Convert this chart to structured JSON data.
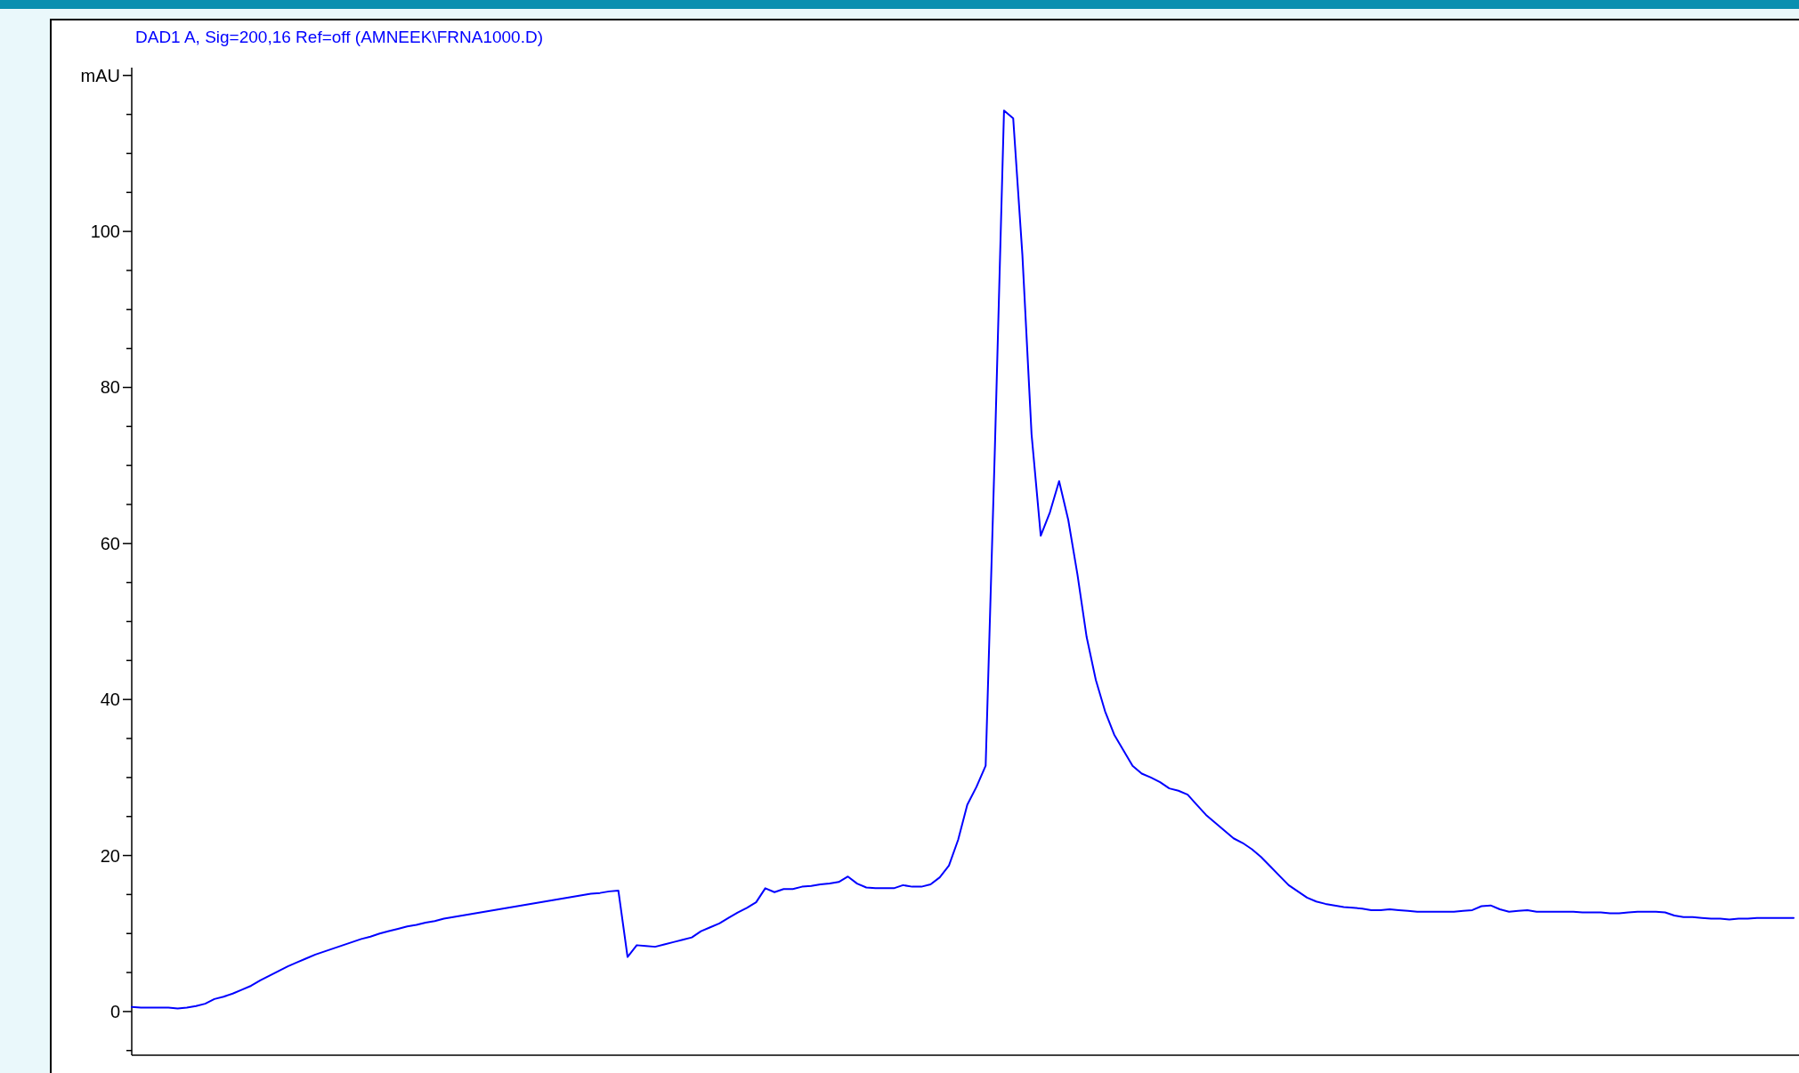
{
  "chart_data": {
    "type": "line",
    "title": "DAD1 A, Sig=200,16 Ref=off (AMNEEK\\FRNA1000.D)",
    "categories": [
      null,
      null,
      null,
      null,
      null,
      null,
      null,
      null,
      null,
      null,
      null,
      null,
      null,
      null,
      null,
      null,
      null,
      null,
      null,
      null,
      null,
      null,
      null,
      null,
      null,
      null,
      null,
      null,
      null,
      null,
      null,
      null,
      null,
      null,
      null,
      null,
      null,
      null,
      null,
      null,
      null,
      null,
      null,
      null,
      null,
      null,
      null,
      null,
      null,
      null,
      null,
      null,
      null,
      null,
      null,
      null,
      null,
      null,
      null,
      null,
      null,
      null,
      null,
      null,
      null,
      null,
      null,
      null,
      null,
      null,
      null,
      null,
      null,
      null,
      null,
      null,
      null,
      null,
      null,
      null,
      null,
      null,
      null,
      null,
      null,
      null,
      null,
      null,
      null,
      null,
      null,
      null,
      null,
      null,
      null,
      null,
      null,
      null,
      null,
      null,
      null,
      null,
      null,
      null,
      null,
      null,
      null,
      null,
      null,
      null,
      null,
      null,
      null,
      null,
      null,
      null,
      null,
      null,
      null,
      null,
      null,
      null,
      null,
      null,
      null,
      null,
      null,
      null,
      null,
      null,
      null,
      null,
      null,
      null,
      null,
      null,
      null,
      null,
      null,
      null,
      null,
      null,
      null,
      null,
      null,
      null,
      null,
      null,
      null,
      null,
      null,
      null,
      null,
      null,
      null,
      null,
      null,
      null,
      null,
      null,
      null,
      null,
      null,
      null,
      null,
      null,
      null,
      null,
      null,
      null,
      null,
      null,
      null,
      null,
      null,
      null,
      null,
      null,
      null,
      null,
      null,
      null
    ],
    "series": [
      {
        "color": "#0000ff",
        "values": [
          0.6,
          0.5,
          0.5,
          0.5,
          0.5,
          0.4,
          0.5,
          0.7,
          1.0,
          1.6,
          1.9,
          2.3,
          2.8,
          3.3,
          4.0,
          4.6,
          5.2,
          5.8,
          6.3,
          6.8,
          7.3,
          7.7,
          8.1,
          8.5,
          8.9,
          9.3,
          9.6,
          10.0,
          10.3,
          10.6,
          10.9,
          11.1,
          11.4,
          11.6,
          11.9,
          12.1,
          12.3,
          12.5,
          12.7,
          12.9,
          13.1,
          13.3,
          13.5,
          13.7,
          13.9,
          14.1,
          14.3,
          14.5,
          14.7,
          14.9,
          15.1,
          15.2,
          15.4,
          15.5,
          7.0,
          8.5,
          8.4,
          8.3,
          8.6,
          8.9,
          9.2,
          9.5,
          10.3,
          10.8,
          11.3,
          12.0,
          12.7,
          13.3,
          14.0,
          15.8,
          15.3,
          15.7,
          15.7,
          16.0,
          16.1,
          16.3,
          16.4,
          16.6,
          17.3,
          16.4,
          15.9,
          15.8,
          15.8,
          15.8,
          16.2,
          16.0,
          16.0,
          16.3,
          17.2,
          18.7,
          22.0,
          26.5,
          28.8,
          31.5,
          72.0,
          115.5,
          114.5,
          97.0,
          74.0,
          61.0,
          64.0,
          68.0,
          63.0,
          56.0,
          48.0,
          42.5,
          38.5,
          35.5,
          33.5,
          31.5,
          30.5,
          30.0,
          29.4,
          28.6,
          28.3,
          27.8,
          26.5,
          25.2,
          24.2,
          23.2,
          22.2,
          21.6,
          20.8,
          19.8,
          18.6,
          17.4,
          16.2,
          15.4,
          14.6,
          14.1,
          13.8,
          13.6,
          13.4,
          13.3,
          13.2,
          13.0,
          13.0,
          13.1,
          13.0,
          12.9,
          12.8,
          12.8,
          12.8,
          12.8,
          12.8,
          12.9,
          13.0,
          13.5,
          13.6,
          13.1,
          12.8,
          12.9,
          13.0,
          12.8,
          12.8,
          12.8,
          12.8,
          12.8,
          12.7,
          12.7,
          12.7,
          12.6,
          12.6,
          12.7,
          12.8,
          12.8,
          12.8,
          12.7,
          12.3,
          12.1,
          12.1,
          12.0,
          11.9,
          11.9,
          11.8,
          11.9,
          11.9,
          12.0,
          12.0,
          12.0,
          12.0,
          12.0
        ]
      }
    ],
    "ylim": [
      -5.6,
      121
    ],
    "yticks": [
      {
        "value": -5,
        "label": null
      },
      0,
      {
        "value": 5,
        "label": null
      },
      {
        "value": 10,
        "label": null
      },
      {
        "value": 15,
        "label": null
      },
      20,
      {
        "value": 25,
        "label": null
      },
      {
        "value": 30,
        "label": null
      },
      {
        "value": 35,
        "label": null
      },
      40,
      {
        "value": 45,
        "label": null
      },
      {
        "value": 50,
        "label": null
      },
      {
        "value": 55,
        "label": null
      },
      60,
      {
        "value": 65,
        "label": null
      },
      {
        "value": 70,
        "label": null
      },
      {
        "value": 75,
        "label": null
      },
      80,
      {
        "value": 85,
        "label": null
      },
      {
        "value": 90,
        "label": null
      },
      {
        "value": 95,
        "label": null
      },
      100,
      {
        "value": 105,
        "label": null
      },
      {
        "value": 110,
        "label": null
      },
      {
        "value": 115,
        "label": null
      },
      {
        "value": 120,
        "label": "mAU"
      }
    ],
    "tick_labels": "y",
    "grid": false,
    "marker": "none",
    "line_style": "solid"
  }
}
